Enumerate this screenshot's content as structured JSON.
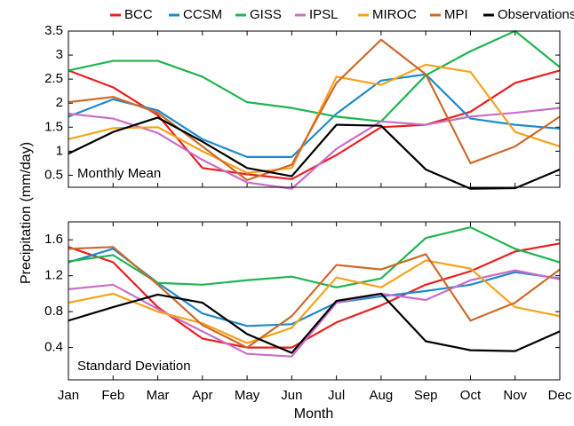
{
  "chart_data": {
    "type": "line",
    "y_label": "Precipitation (mm/day)",
    "x_label": "Month",
    "categories": [
      "Jan",
      "Feb",
      "Mar",
      "Apr",
      "May",
      "Jun",
      "Jul",
      "Aug",
      "Sep",
      "Oct",
      "Nov",
      "Dec"
    ],
    "series": [
      {
        "name": "BCC",
        "color": "#e8201f",
        "values": [
          2.68,
          2.33,
          1.75,
          0.65,
          0.52,
          0.42,
          0.92,
          1.5,
          1.55,
          1.82,
          2.42,
          2.68
        ],
        "std": [
          1.52,
          1.35,
          0.85,
          0.5,
          0.4,
          0.4,
          0.68,
          0.87,
          1.1,
          1.25,
          1.47,
          1.56
        ]
      },
      {
        "name": "CCSM",
        "color": "#1f8ac9",
        "values": [
          1.72,
          2.08,
          1.85,
          1.25,
          0.88,
          0.88,
          1.78,
          2.47,
          2.6,
          1.68,
          1.55,
          1.47
        ],
        "std": [
          1.35,
          1.5,
          1.12,
          0.78,
          0.64,
          0.66,
          0.9,
          0.97,
          1.03,
          1.1,
          1.24,
          1.17
        ]
      },
      {
        "name": "GISS",
        "color": "#1fb550",
        "values": [
          2.68,
          2.88,
          2.88,
          2.55,
          2.02,
          1.9,
          1.72,
          1.62,
          2.58,
          3.08,
          3.5,
          2.75
        ],
        "std": [
          1.36,
          1.43,
          1.12,
          1.1,
          1.15,
          1.19,
          1.07,
          1.17,
          1.62,
          1.74,
          1.5,
          1.35
        ]
      },
      {
        "name": "IPSL",
        "color": "#c86fc8",
        "values": [
          1.78,
          1.68,
          1.38,
          0.82,
          0.35,
          0.22,
          1.05,
          1.62,
          1.55,
          1.72,
          1.8,
          1.9
        ],
        "std": [
          1.05,
          1.1,
          0.83,
          0.58,
          0.33,
          0.3,
          0.9,
          1.0,
          0.93,
          1.15,
          1.26,
          1.16
        ]
      },
      {
        "name": "MIROC",
        "color": "#f7a21b",
        "values": [
          1.25,
          1.48,
          1.5,
          1.0,
          0.55,
          0.65,
          2.55,
          2.38,
          2.8,
          2.65,
          1.4,
          1.1
        ],
        "std": [
          0.9,
          1.0,
          0.8,
          0.67,
          0.45,
          0.62,
          1.18,
          1.07,
          1.37,
          1.28,
          0.85,
          0.75
        ]
      },
      {
        "name": "MPI",
        "color": "#cd6a2a",
        "values": [
          2.02,
          2.13,
          1.8,
          1.1,
          0.4,
          0.72,
          2.42,
          3.32,
          2.6,
          0.75,
          1.1,
          1.72
        ],
        "std": [
          1.5,
          1.52,
          1.1,
          0.65,
          0.4,
          0.75,
          1.32,
          1.27,
          1.44,
          0.7,
          0.9,
          1.27
        ]
      },
      {
        "name": "Observations",
        "color": "#000000",
        "values": [
          0.95,
          1.4,
          1.7,
          1.2,
          0.65,
          0.48,
          1.55,
          1.53,
          0.62,
          0.22,
          0.23,
          0.62
        ],
        "std": [
          0.7,
          0.85,
          0.99,
          0.9,
          0.55,
          0.34,
          0.92,
          1.0,
          0.47,
          0.37,
          0.36,
          0.58
        ]
      }
    ],
    "panels": [
      {
        "annotation": "Monthly Mean",
        "ylim": [
          0.25,
          3.5
        ],
        "yticks": [
          0.5,
          1,
          1.5,
          2,
          2.5,
          3,
          3.5
        ]
      },
      {
        "annotation": "Standard Deviation",
        "ylim": [
          0.04,
          1.8
        ],
        "yticks": [
          0.4,
          0.8,
          1.2,
          1.6
        ]
      }
    ]
  }
}
